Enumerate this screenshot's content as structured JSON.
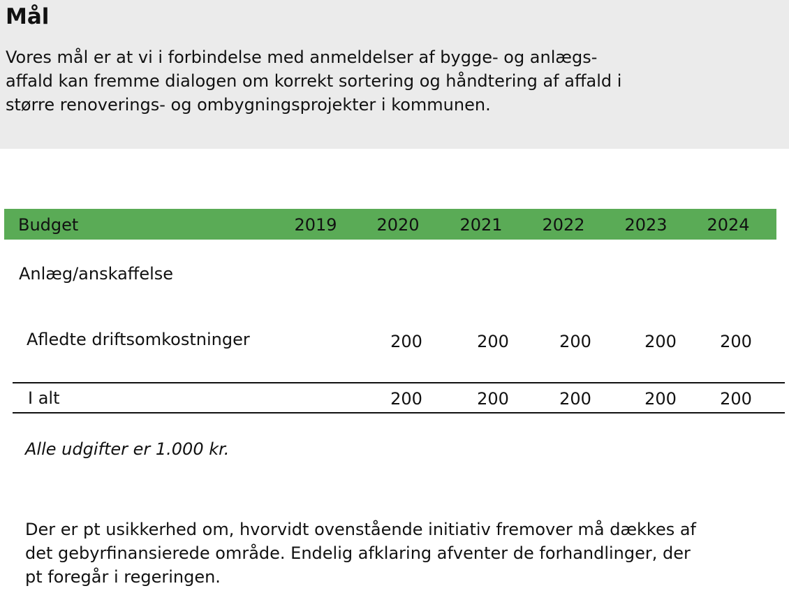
{
  "header": {
    "title": "Mål",
    "lines": [
      "Vores mål er at vi i forbindelse med anmeldelser af bygge- og anlægs-",
      "affald kan fremme dialogen om korrekt sortering og håndtering af affald i",
      "større renoverings- og ombygningsprojekter i kommunen."
    ]
  },
  "table": {
    "columns": [
      "Budget",
      "2019",
      "2020",
      "2021",
      "2022",
      "2023",
      "2024"
    ],
    "section": "Anlæg/anskaffelse",
    "rows": [
      {
        "label": "Afledte driftsomkostninger",
        "values": [
          200,
          200,
          200,
          200,
          200
        ]
      }
    ],
    "total": {
      "label": "I alt",
      "values": [
        200,
        200,
        200,
        200,
        200
      ]
    }
  },
  "note": "Alle udgifter er 1.000 kr.",
  "footer": {
    "lines": [
      "Der er pt usikkerhed om, hvorvidt ovenstående initiativ fremover må dækkes af",
      "det gebyrfinansierede område. Endelig afklaring afventer de forhandlinger, der",
      "pt foregår i regeringen."
    ]
  }
}
